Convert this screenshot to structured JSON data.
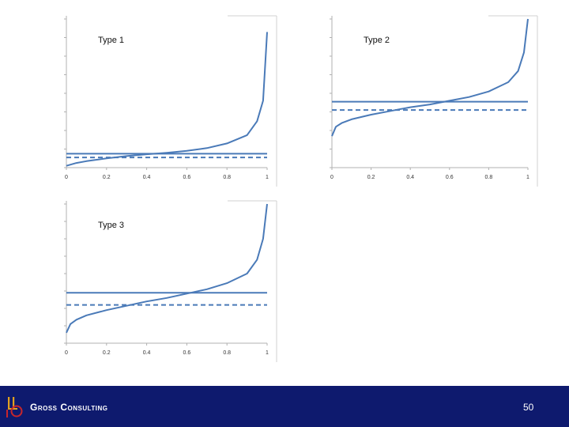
{
  "chart_data": [
    {
      "type": "line",
      "title": "Type 1",
      "xlabel": "",
      "ylabel": "",
      "x_ticks": [
        "0",
        "0.2",
        "0.4",
        "0.6",
        "0.8",
        "1"
      ],
      "xlim": [
        0,
        1
      ],
      "ylim": [
        0,
        8
      ],
      "series": [
        {
          "name": "curve",
          "style": "solid",
          "x": [
            0,
            0.05,
            0.1,
            0.2,
            0.3,
            0.4,
            0.5,
            0.6,
            0.7,
            0.8,
            0.9,
            0.95,
            0.98,
            1
          ],
          "y": [
            0.1,
            0.25,
            0.35,
            0.5,
            0.62,
            0.72,
            0.8,
            0.9,
            1.05,
            1.3,
            1.75,
            2.5,
            3.6,
            7.3
          ]
        },
        {
          "name": "solid level",
          "style": "solid",
          "x": [
            0,
            1
          ],
          "y": [
            0.75,
            0.75
          ]
        },
        {
          "name": "dashed level",
          "style": "dashed",
          "x": [
            0,
            1
          ],
          "y": [
            0.55,
            0.55
          ]
        }
      ]
    },
    {
      "type": "line",
      "title": "Type 2",
      "xlabel": "",
      "ylabel": "",
      "x_ticks": [
        "0",
        "0.2",
        "0.4",
        "0.6",
        "0.8",
        "1"
      ],
      "xlim": [
        0,
        1
      ],
      "ylim": [
        0,
        8
      ],
      "series": [
        {
          "name": "curve",
          "style": "solid",
          "x": [
            0,
            0.02,
            0.05,
            0.1,
            0.2,
            0.3,
            0.4,
            0.5,
            0.6,
            0.7,
            0.8,
            0.9,
            0.95,
            0.98,
            1
          ],
          "y": [
            1.7,
            2.2,
            2.4,
            2.6,
            2.85,
            3.05,
            3.25,
            3.4,
            3.6,
            3.8,
            4.1,
            4.6,
            5.2,
            6.2,
            8.0
          ]
        },
        {
          "name": "solid level",
          "style": "solid",
          "x": [
            0,
            1
          ],
          "y": [
            3.55,
            3.55
          ]
        },
        {
          "name": "dashed level",
          "style": "dashed",
          "x": [
            0,
            1
          ],
          "y": [
            3.1,
            3.1
          ]
        }
      ]
    },
    {
      "type": "line",
      "title": "Type 3",
      "xlabel": "",
      "ylabel": "",
      "x_ticks": [
        "0",
        "0.2",
        "0.4",
        "0.6",
        "0.8",
        "1"
      ],
      "xlim": [
        0,
        1
      ],
      "ylim": [
        0,
        8
      ],
      "series": [
        {
          "name": "curve",
          "style": "solid",
          "x": [
            0,
            0.02,
            0.05,
            0.1,
            0.2,
            0.3,
            0.4,
            0.5,
            0.6,
            0.7,
            0.8,
            0.9,
            0.95,
            0.98,
            1
          ],
          "y": [
            0.6,
            1.1,
            1.35,
            1.6,
            1.9,
            2.15,
            2.4,
            2.6,
            2.85,
            3.1,
            3.45,
            4.0,
            4.8,
            6.0,
            8.0
          ]
        },
        {
          "name": "solid level",
          "style": "solid",
          "x": [
            0,
            1
          ],
          "y": [
            2.9,
            2.9
          ]
        },
        {
          "name": "dashed level",
          "style": "dashed",
          "x": [
            0,
            1
          ],
          "y": [
            2.2,
            2.2
          ]
        }
      ]
    }
  ],
  "footer": {
    "company": "Gross Consulting",
    "page_number": "50"
  },
  "colors": {
    "line": "#4a7ab8",
    "axis": "#b0b0b0",
    "footer_bg": "#0e1a6e",
    "logo_red": "#c8262c",
    "logo_gold": "#e0a020"
  }
}
